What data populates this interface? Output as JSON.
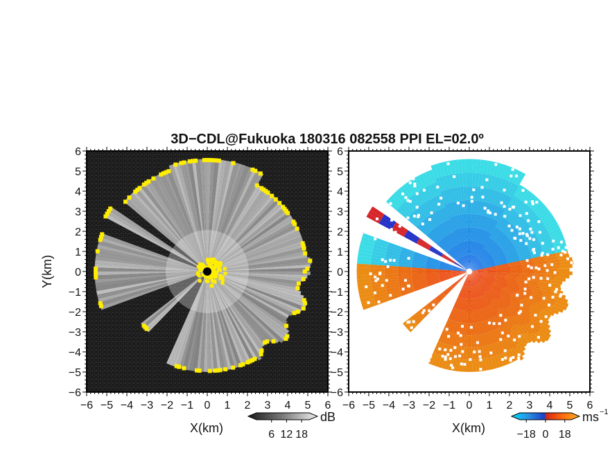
{
  "figure": {
    "title": "3D−CDL@Fukuoka 180316 082558 PPI EL=02.0º"
  },
  "chart_data": [
    {
      "type": "heatmap",
      "panel": "reflectivity",
      "xlabel": "X(km)",
      "ylabel": "Y(km)",
      "xlim": [
        -6,
        6
      ],
      "ylim": [
        -6,
        6
      ],
      "x_ticks": [
        "−6",
        "−5",
        "−4",
        "−3",
        "−2",
        "−1",
        "0",
        "1",
        "2",
        "3",
        "4",
        "5",
        "6"
      ],
      "y_ticks": [
        "6",
        "5",
        "4",
        "3",
        "2",
        "1",
        "0",
        "−1",
        "−2",
        "−3",
        "−4",
        "−5",
        "−6"
      ],
      "background": "#1a1a1a",
      "colorbar": {
        "unit": "dB",
        "ticks": [
          "6",
          "12",
          "18"
        ],
        "range": [
          0,
          21
        ]
      },
      "colors": {
        "low": "#222222",
        "high": "#f2f2f2",
        "saturated": "#ffee00"
      }
    },
    {
      "type": "heatmap",
      "panel": "doppler-velocity",
      "xlabel": "X(km)",
      "xlim": [
        -6,
        6
      ],
      "ylim": [
        -6,
        6
      ],
      "x_ticks": [
        "−6",
        "−5",
        "−4",
        "−3",
        "−2",
        "−1",
        "0",
        "1",
        "2",
        "3",
        "4",
        "5",
        "6"
      ],
      "y_ticks": [
        "6",
        "5",
        "4",
        "3",
        "2",
        "1",
        "0",
        "−1",
        "−2",
        "−3",
        "−4",
        "−5",
        "−6"
      ],
      "background": "#ffffff",
      "colorbar": {
        "unit": "ms",
        "unit_exp": "−1",
        "ticks": [
          "−18",
          "0",
          "18"
        ],
        "range": [
          -24,
          24
        ]
      },
      "colors": {
        "toward": "#1e5fd8",
        "away": "#ee4411",
        "strong_toward": "#00e0ff",
        "strong_away": "#ff9a1a"
      }
    }
  ]
}
